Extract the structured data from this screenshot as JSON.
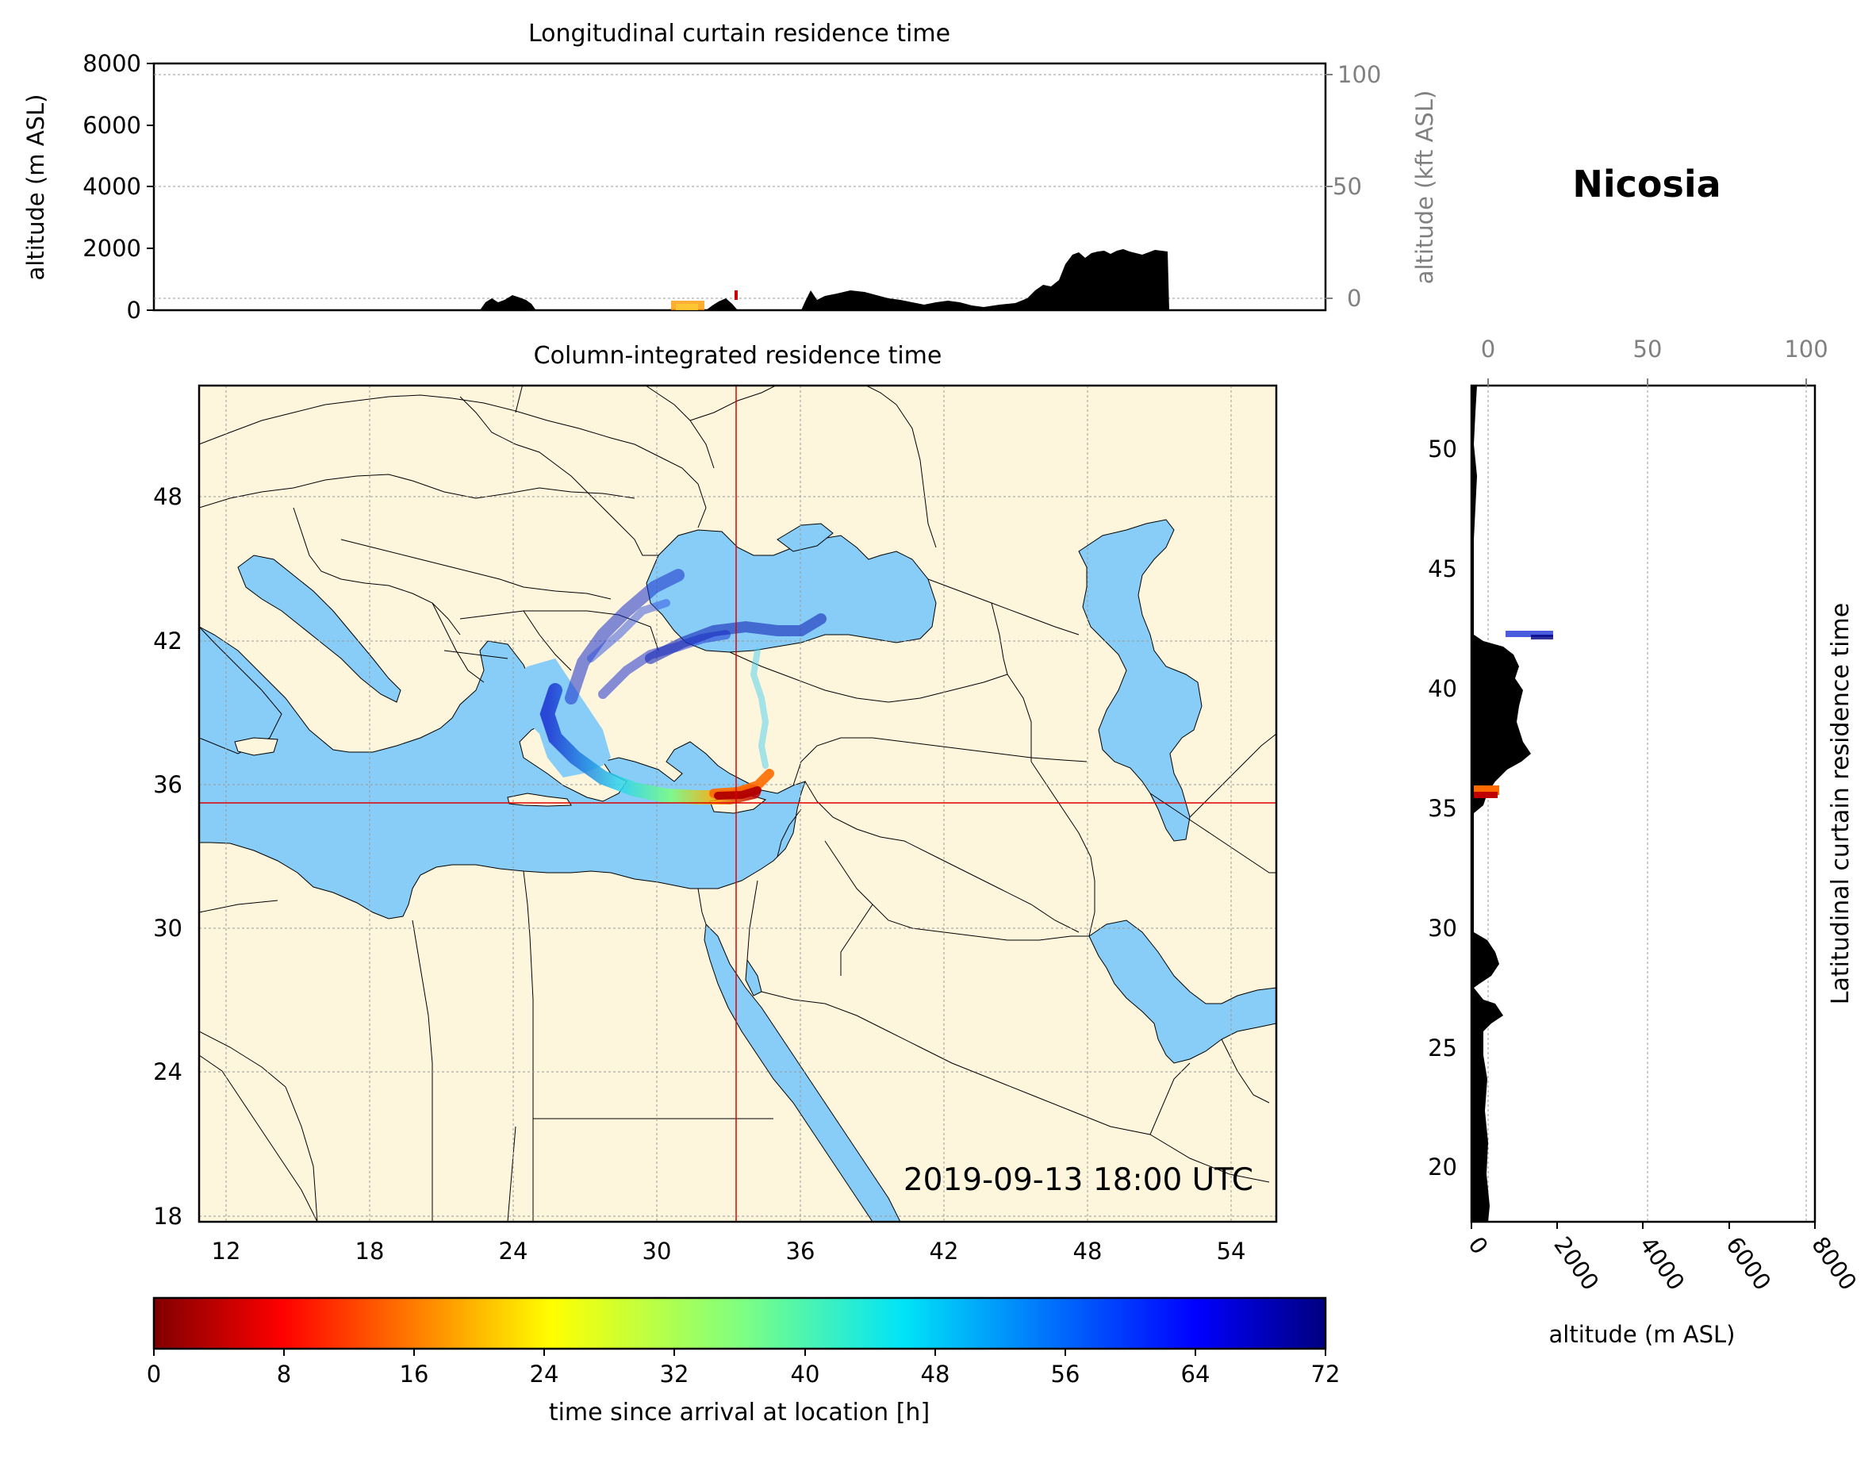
{
  "location": "Nicosia",
  "timestamp": "2019-09-13 18:00 UTC",
  "top_panel": {
    "title": "Longitudinal curtain residence time",
    "ylabel_left": "altitude (m ASL)",
    "ylabel_right": "altitude (kft ASL)",
    "left_ticks": [
      "0",
      "2000",
      "4000",
      "6000",
      "8000"
    ],
    "right_ticks": [
      "0",
      "50",
      "100"
    ],
    "ylim": [
      0,
      8000
    ]
  },
  "map_panel": {
    "title": "Column-integrated residence time",
    "x_ticks": [
      "12",
      "18",
      "24",
      "30",
      "36",
      "42",
      "48",
      "54"
    ],
    "y_ticks": [
      "18",
      "24",
      "30",
      "36",
      "42",
      "48"
    ],
    "lon_range": [
      10.9,
      55.9
    ],
    "lat_range": [
      17.9,
      52.8
    ],
    "release_point": {
      "lon": 33.38,
      "lat": 35.17
    },
    "colors": {
      "land": "#fdf5dc",
      "water": "#87cdf8",
      "border": "#000000",
      "crosshair": "#e00000"
    }
  },
  "side_panel": {
    "ylabel_right": "Latitudinal curtain residence time",
    "xlabel": "altitude (m ASL)",
    "y_ticks": [
      "20",
      "25",
      "30",
      "35",
      "40",
      "45",
      "50"
    ],
    "bottom_ticks": [
      "0",
      "2000",
      "4000",
      "6000",
      "8000"
    ],
    "top_ticks": [
      "0",
      "50",
      "100"
    ],
    "lat_range": [
      17.9,
      52.8
    ]
  },
  "colorbar": {
    "label": "time since arrival at location [h]",
    "ticks": [
      "0",
      "8",
      "16",
      "24",
      "32",
      "40",
      "48",
      "56",
      "64",
      "72"
    ],
    "range": [
      0,
      72
    ],
    "colormap": "jet_reversed"
  }
}
